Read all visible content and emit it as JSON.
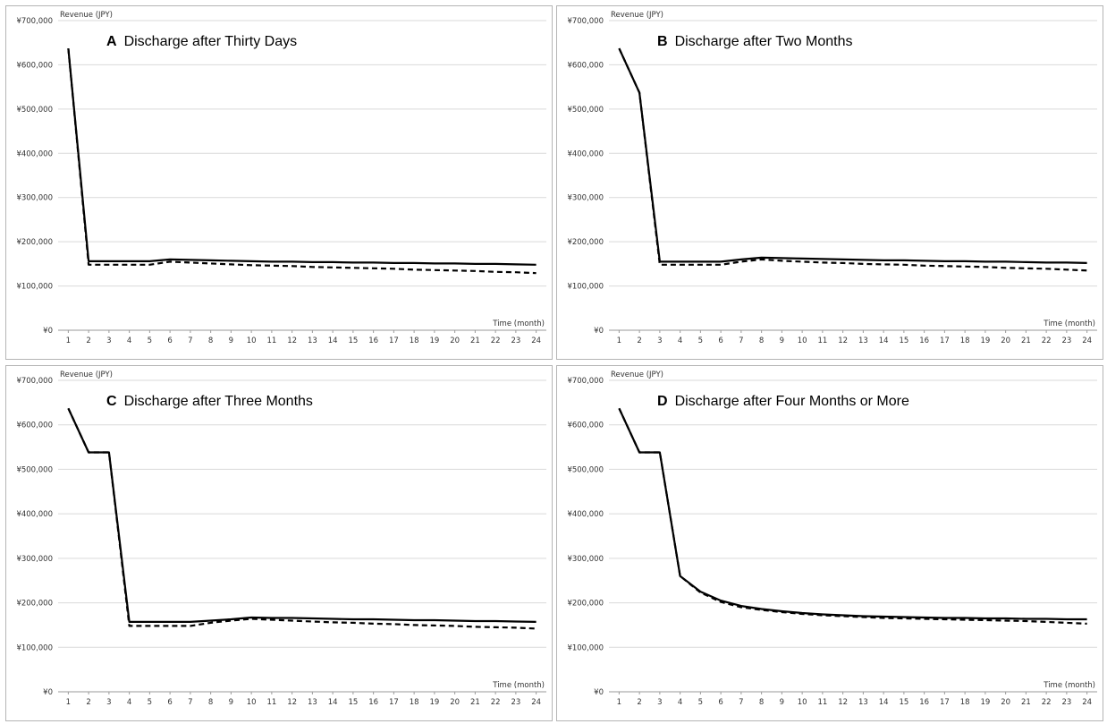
{
  "chart_data": [
    {
      "type": "line",
      "panel": "A",
      "title": "Discharge after Thirty Days",
      "ylabel": "Revenue (JPY)",
      "xlabel": "Time (month)",
      "ylim": [
        0,
        700000
      ],
      "yticks": [
        "¥0",
        "¥100,000",
        "¥200,000",
        "¥300,000",
        "¥400,000",
        "¥500,000",
        "¥600,000",
        "¥700,000"
      ],
      "x": [
        1,
        2,
        3,
        4,
        5,
        6,
        7,
        8,
        9,
        10,
        11,
        12,
        13,
        14,
        15,
        16,
        17,
        18,
        19,
        20,
        21,
        22,
        23,
        24
      ],
      "grid": true,
      "series": [
        {
          "style": "solid",
          "values": [
            637000,
            156000,
            156000,
            156000,
            156000,
            160000,
            159000,
            158000,
            157000,
            156000,
            155000,
            155000,
            154000,
            154000,
            153000,
            153000,
            152000,
            152000,
            151000,
            151000,
            150000,
            150000,
            149000,
            148000
          ]
        },
        {
          "style": "dashed",
          "values": [
            637000,
            148000,
            148000,
            148000,
            148000,
            155000,
            153000,
            151000,
            149000,
            147000,
            146000,
            145000,
            143000,
            142000,
            141000,
            140000,
            139000,
            137000,
            136000,
            135000,
            134000,
            132000,
            131000,
            129000
          ]
        }
      ]
    },
    {
      "type": "line",
      "panel": "B",
      "title": "Discharge after Two Months",
      "ylabel": "Revenue (JPY)",
      "xlabel": "Time (month)",
      "ylim": [
        0,
        700000
      ],
      "yticks": [
        "¥0",
        "¥100,000",
        "¥200,000",
        "¥300,000",
        "¥400,000",
        "¥500,000",
        "¥600,000",
        "¥700,000"
      ],
      "x": [
        1,
        2,
        3,
        4,
        5,
        6,
        7,
        8,
        9,
        10,
        11,
        12,
        13,
        14,
        15,
        16,
        17,
        18,
        19,
        20,
        21,
        22,
        23,
        24
      ],
      "grid": true,
      "series": [
        {
          "style": "solid",
          "values": [
            637000,
            537000,
            155000,
            155000,
            155000,
            155000,
            160000,
            164000,
            163000,
            162000,
            161000,
            160000,
            159000,
            158000,
            158000,
            157000,
            156000,
            156000,
            155000,
            155000,
            154000,
            153000,
            153000,
            152000
          ]
        },
        {
          "style": "dashed",
          "values": [
            637000,
            537000,
            148000,
            148000,
            148000,
            148000,
            155000,
            160000,
            157000,
            155000,
            153000,
            152000,
            150000,
            149000,
            148000,
            146000,
            145000,
            144000,
            143000,
            141000,
            140000,
            139000,
            137000,
            135000
          ]
        }
      ]
    },
    {
      "type": "line",
      "panel": "C",
      "title": "Discharge after Three Months",
      "ylabel": "Revenue (JPY)",
      "xlabel": "Time (month)",
      "ylim": [
        0,
        700000
      ],
      "yticks": [
        "¥0",
        "¥100,000",
        "¥200,000",
        "¥300,000",
        "¥400,000",
        "¥500,000",
        "¥600,000",
        "¥700,000"
      ],
      "x": [
        1,
        2,
        3,
        4,
        5,
        6,
        7,
        8,
        9,
        10,
        11,
        12,
        13,
        14,
        15,
        16,
        17,
        18,
        19,
        20,
        21,
        22,
        23,
        24
      ],
      "grid": true,
      "series": [
        {
          "style": "solid",
          "values": [
            637000,
            538000,
            538000,
            157000,
            157000,
            157000,
            157000,
            160000,
            163000,
            167000,
            166000,
            166000,
            165000,
            164000,
            163000,
            163000,
            162000,
            161000,
            161000,
            160000,
            159000,
            159000,
            158000,
            157000
          ]
        },
        {
          "style": "dashed",
          "values": [
            637000,
            538000,
            538000,
            148000,
            148000,
            148000,
            148000,
            155000,
            160000,
            164000,
            162000,
            160000,
            158000,
            156000,
            155000,
            153000,
            152000,
            150000,
            149000,
            148000,
            146000,
            145000,
            144000,
            142000
          ]
        }
      ]
    },
    {
      "type": "line",
      "panel": "D",
      "title": "Discharge after Four Months or More",
      "ylabel": "Revenue (JPY)",
      "xlabel": "Time (month)",
      "ylim": [
        0,
        700000
      ],
      "yticks": [
        "¥0",
        "¥100,000",
        "¥200,000",
        "¥300,000",
        "¥400,000",
        "¥500,000",
        "¥600,000",
        "¥700,000"
      ],
      "x": [
        1,
        2,
        3,
        4,
        5,
        6,
        7,
        8,
        9,
        10,
        11,
        12,
        13,
        14,
        15,
        16,
        17,
        18,
        19,
        20,
        21,
        22,
        23,
        24
      ],
      "grid": true,
      "series": [
        {
          "style": "solid",
          "values": [
            637000,
            538000,
            538000,
            260000,
            225000,
            205000,
            193000,
            186000,
            181000,
            177000,
            174000,
            172000,
            170000,
            169000,
            168000,
            167000,
            166000,
            166000,
            165000,
            165000,
            164000,
            164000,
            163000,
            163000
          ]
        },
        {
          "style": "dashed",
          "values": [
            637000,
            538000,
            538000,
            260000,
            223000,
            202000,
            190000,
            184000,
            179000,
            175000,
            172000,
            170000,
            168000,
            166000,
            165000,
            164000,
            163000,
            162000,
            161000,
            160000,
            159000,
            157000,
            155000,
            153000
          ]
        }
      ]
    }
  ]
}
